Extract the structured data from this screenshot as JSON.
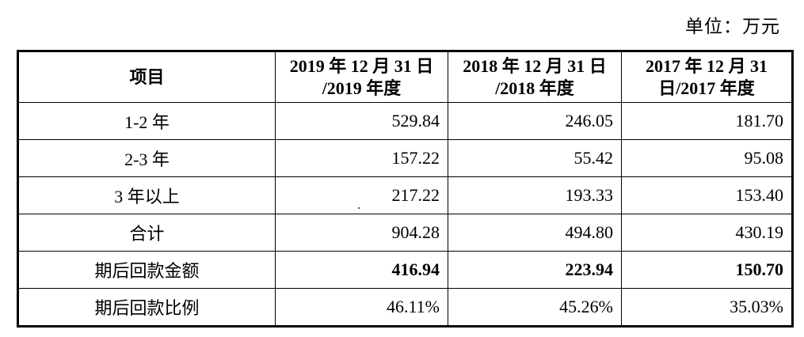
{
  "unit_label": "单位：万元",
  "table": {
    "headers": [
      {
        "line1": "项目",
        "line2": ""
      },
      {
        "line1": "2019 年 12 月 31 日",
        "line2": "/2019 年度"
      },
      {
        "line1": "2018 年 12 月 31 日",
        "line2": "/2018 年度"
      },
      {
        "line1": "2017 年 12 月 31",
        "line2": "日/2017 年度"
      }
    ],
    "rows": [
      {
        "label": "1-2 年",
        "values": [
          "529.84",
          "246.05",
          "181.70"
        ],
        "bold": false
      },
      {
        "label": "2-3 年",
        "values": [
          "157.22",
          "55.42",
          "95.08"
        ],
        "bold": false
      },
      {
        "label": "3 年以上",
        "values": [
          "217.22",
          "193.33",
          "153.40"
        ],
        "bold": false
      },
      {
        "label": "合计",
        "values": [
          "904.28",
          "494.80",
          "430.19"
        ],
        "bold": false
      },
      {
        "label": "期后回款金额",
        "values": [
          "416.94",
          "223.94",
          "150.70"
        ],
        "bold": true
      },
      {
        "label": "期后回款比例",
        "values": [
          "46.11%",
          "45.26%",
          "35.03%"
        ],
        "bold": false
      }
    ]
  }
}
